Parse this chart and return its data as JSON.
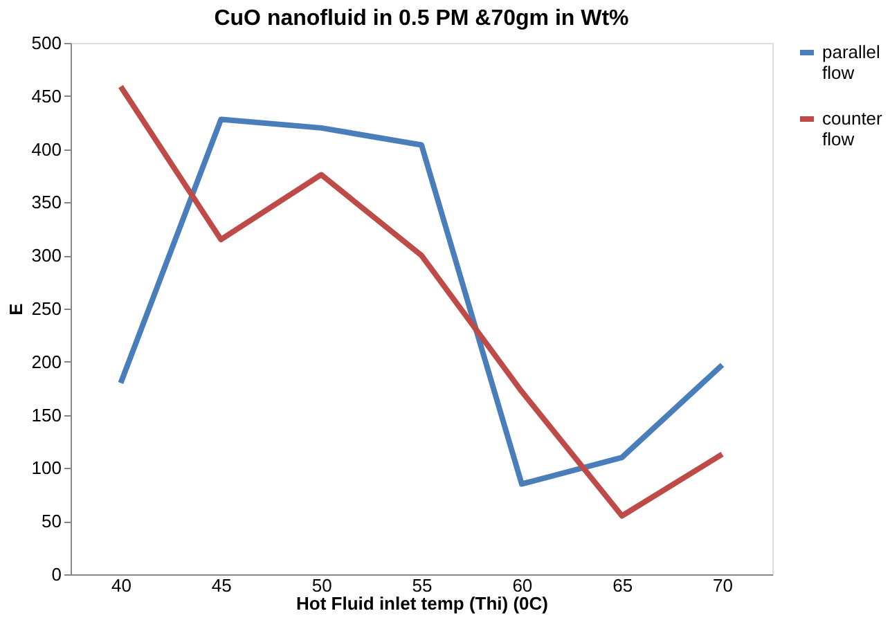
{
  "chart_data": {
    "type": "line",
    "title": "CuO nanofluid in 0.5 PM &70gm in Wt%",
    "xlabel": "Hot Fluid inlet temp (Thi) (0C)",
    "ylabel": "E",
    "categories": [
      "40",
      "45",
      "50",
      "55",
      "60",
      "65",
      "70"
    ],
    "series": [
      {
        "name": "parallel flow",
        "color": "#4a7ebb",
        "values": [
          180,
          428,
          420,
          404,
          85,
          110,
          197
        ]
      },
      {
        "name": "counter flow",
        "color": "#be4b48",
        "values": [
          459,
          315,
          376,
          300,
          172,
          55,
          113
        ]
      }
    ],
    "ylim": [
      0,
      500
    ],
    "yticks": [
      0,
      50,
      100,
      150,
      200,
      250,
      300,
      350,
      400,
      450,
      500
    ],
    "grid": false,
    "legend": "right",
    "marker": "none",
    "line_style": "solid"
  }
}
